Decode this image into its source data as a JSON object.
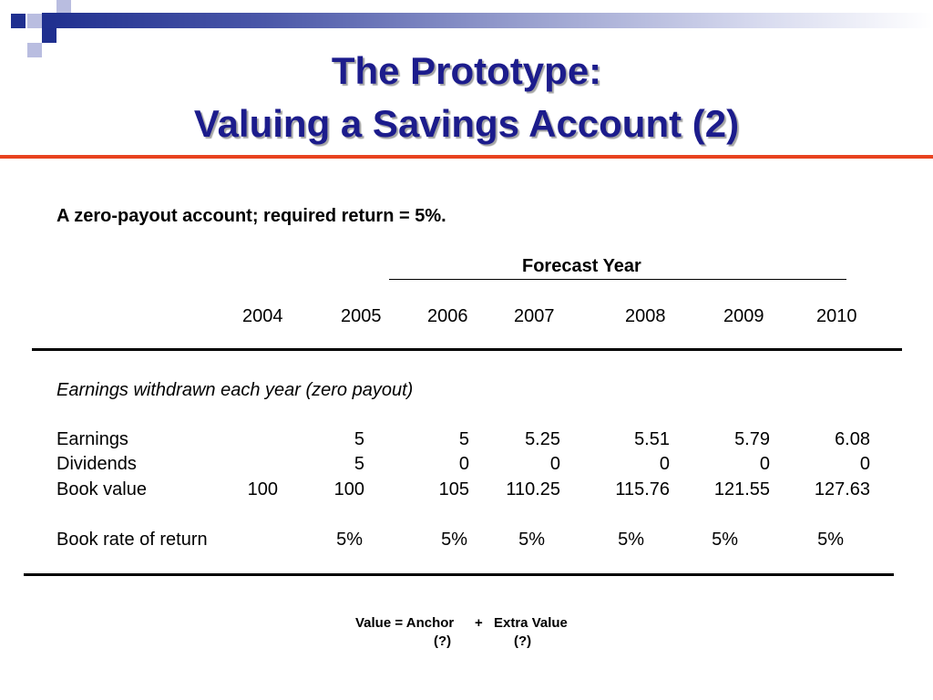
{
  "slide": {
    "title_line1": "The Prototype:",
    "title_line2": "Valuing a Savings Account (2)"
  },
  "content": {
    "intro": "A zero-payout account; required return = 5%.",
    "forecast_header": "Forecast Year",
    "years": [
      "2004",
      "2005",
      "2006",
      "2007",
      "2008",
      "2009",
      "2010"
    ],
    "section_label": "Earnings withdrawn each year (zero payout)",
    "rows": [
      {
        "label": "Earnings",
        "values": [
          "",
          "5",
          "5",
          "5.25",
          "5.51",
          "5.79",
          "6.08"
        ]
      },
      {
        "label": "Dividends",
        "values": [
          "",
          "5",
          "0",
          "0",
          "0",
          "0",
          "0"
        ]
      },
      {
        "label": "Book value",
        "values": [
          "100",
          "100",
          "105",
          "110.25",
          "115.76",
          "121.55",
          "127.63"
        ]
      },
      {
        "label": "Book rate of return",
        "values": [
          "",
          "5%",
          "5%",
          "5%",
          "5%",
          "5%",
          "5%"
        ]
      }
    ]
  },
  "footer": {
    "value_eq": "Value = Anchor",
    "plus": "+",
    "extra_value": "Extra Value",
    "anchor_q": "(?)",
    "extra_q": "(?)"
  },
  "colors": {
    "title": "#1c1c8c",
    "accent_rule": "#e8431f",
    "band_start": "#1f2f8f"
  }
}
